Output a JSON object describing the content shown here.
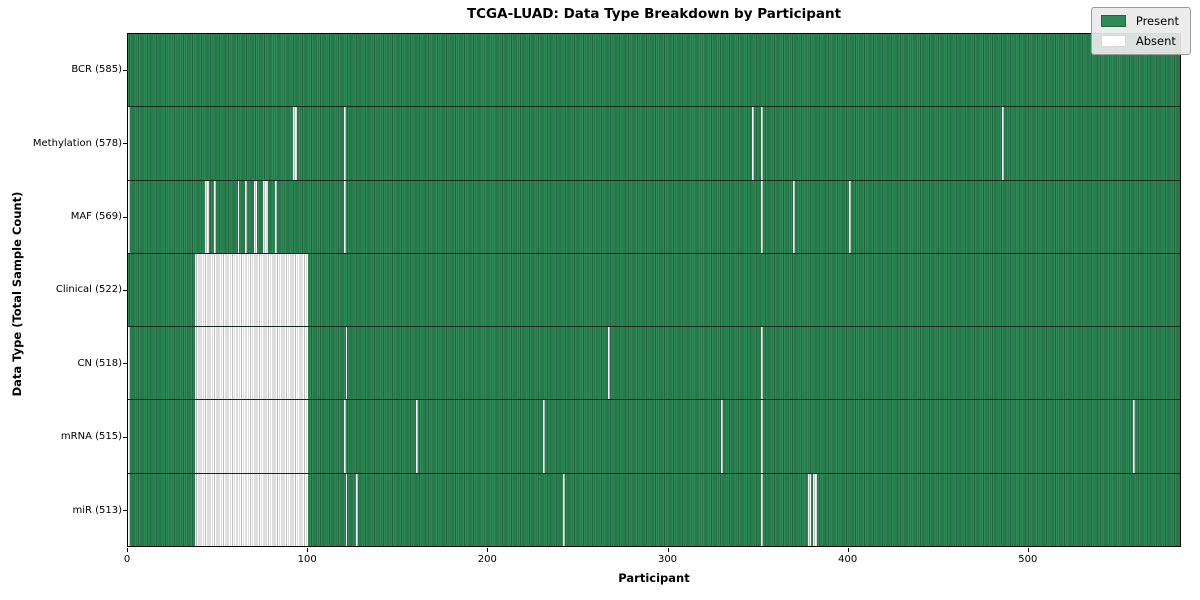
{
  "title": "TCGA-LUAD: Data Type Breakdown by Participant",
  "legend": {
    "present_label": "Present",
    "absent_label": "Absent"
  },
  "colors": {
    "present_fill": "#2e8b57",
    "present_stripe": "#20663e",
    "absent_fill": "#ffffff",
    "absent_stripe": "#bdbdbd",
    "row_separator": "#0a140c",
    "legend_bg": "#eaeaea",
    "legend_border": "#9c9c9c"
  },
  "chart_data": {
    "type": "heatmap",
    "title": "TCGA-LUAD: Data Type Breakdown by Participant",
    "xlabel": "Participant",
    "ylabel": "Data Type (Total Sample Count)",
    "x_min": 0,
    "x_max": 585,
    "x_ticks": [
      0,
      100,
      200,
      300,
      400,
      500
    ],
    "legend_entries": [
      {
        "label": "Present",
        "color": "#2e8b57"
      },
      {
        "label": "Absent",
        "color": "#ffffff"
      }
    ],
    "legend_position": "upper right",
    "grid": false,
    "n_participants": 585,
    "rows": [
      {
        "key": "bcr",
        "label": "BCR (585)",
        "present_count": 585,
        "absent_ranges": []
      },
      {
        "key": "methylation",
        "label": "Methylation (578)",
        "present_count": 578,
        "absent_ranges": [
          [
            0,
            1
          ],
          [
            92,
            94
          ],
          [
            120,
            121
          ],
          [
            347,
            348
          ],
          [
            352,
            353
          ],
          [
            486,
            487
          ]
        ]
      },
      {
        "key": "maf",
        "label": "MAF (569)",
        "present_count": 569,
        "absent_ranges": [
          [
            0,
            1
          ],
          [
            43,
            45
          ],
          [
            48,
            49
          ],
          [
            61,
            62
          ],
          [
            65,
            66
          ],
          [
            70,
            72
          ],
          [
            75,
            78
          ],
          [
            82,
            83
          ],
          [
            120,
            121
          ],
          [
            352,
            353
          ],
          [
            370,
            371
          ],
          [
            401,
            402
          ]
        ]
      },
      {
        "key": "clinical",
        "label": "Clinical (522)",
        "present_count": 522,
        "absent_ranges": [
          [
            37,
            100
          ]
        ]
      },
      {
        "key": "cn",
        "label": "CN (518)",
        "present_count": 518,
        "absent_ranges": [
          [
            0,
            1
          ],
          [
            37,
            100
          ],
          [
            121,
            122
          ],
          [
            267,
            268
          ],
          [
            352,
            353
          ]
        ]
      },
      {
        "key": "mrna",
        "label": "mRNA (515)",
        "present_count": 515,
        "absent_ranges": [
          [
            0,
            1
          ],
          [
            37,
            100
          ],
          [
            120,
            121
          ],
          [
            160,
            161
          ],
          [
            231,
            232
          ],
          [
            330,
            331
          ],
          [
            352,
            353
          ],
          [
            559,
            560
          ]
        ]
      },
      {
        "key": "mir",
        "label": "miR (513)",
        "present_count": 513,
        "absent_ranges": [
          [
            0,
            1
          ],
          [
            37,
            100
          ],
          [
            121,
            122
          ],
          [
            127,
            128
          ],
          [
            242,
            243
          ],
          [
            352,
            353
          ],
          [
            378,
            380
          ],
          [
            381,
            383
          ]
        ]
      }
    ]
  }
}
